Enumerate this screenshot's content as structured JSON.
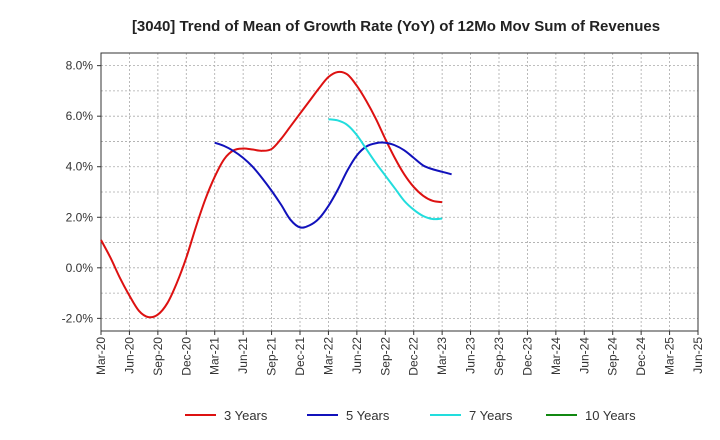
{
  "chart_data": {
    "type": "line",
    "title": "[3040]  Trend of Mean of Growth Rate (YoY) of 12Mo Mov Sum of Revenues",
    "xlabel": "",
    "ylabel": "",
    "ylim": [
      -2.5,
      8.5
    ],
    "yticks": [
      -2.0,
      0.0,
      2.0,
      4.0,
      6.0,
      8.0
    ],
    "ytick_labels": [
      "-2.0%",
      "0.0%",
      "2.0%",
      "4.0%",
      "6.0%",
      "8.0%"
    ],
    "x_tick_labels": [
      "Mar-20",
      "Jun-20",
      "Sep-20",
      "Dec-20",
      "Mar-21",
      "Jun-21",
      "Sep-21",
      "Dec-21",
      "Mar-22",
      "Jun-22",
      "Sep-22",
      "Dec-22",
      "Mar-23",
      "Jun-23",
      "Sep-23",
      "Dec-23",
      "Mar-24",
      "Jun-24",
      "Sep-24",
      "Dec-24",
      "Mar-25",
      "Jun-25"
    ],
    "grid": true,
    "legend_position": "bottom",
    "series": [
      {
        "name": "3 Years",
        "color": "#dd1111",
        "start_index": 0,
        "values": [
          1.1,
          0.4,
          -0.4,
          -1.1,
          -1.7,
          -1.95,
          -1.85,
          -1.4,
          -0.6,
          0.4,
          1.6,
          2.7,
          3.6,
          4.3,
          4.65,
          4.72,
          4.68,
          4.63,
          4.7,
          5.1,
          5.6,
          6.1,
          6.6,
          7.1,
          7.55,
          7.75,
          7.65,
          7.2,
          6.6,
          5.9,
          5.1,
          4.35,
          3.7,
          3.2,
          2.85,
          2.65,
          2.6
        ]
      },
      {
        "name": "5 Years",
        "color": "#1111bb",
        "start_index": 12,
        "values": [
          4.95,
          4.82,
          4.62,
          4.35,
          4.0,
          3.55,
          3.05,
          2.5,
          1.9,
          1.6,
          1.68,
          1.95,
          2.45,
          3.1,
          3.85,
          4.45,
          4.8,
          4.93,
          4.95,
          4.85,
          4.65,
          4.35,
          4.05,
          3.9,
          3.8,
          3.7
        ]
      },
      {
        "name": "7 Years",
        "color": "#22dddd",
        "start_index": 24,
        "values": [
          5.88,
          5.83,
          5.65,
          5.25,
          4.7,
          4.15,
          3.65,
          3.15,
          2.65,
          2.3,
          2.05,
          1.93,
          1.95
        ]
      },
      {
        "name": "10 Years",
        "color": "#118811",
        "start_index": 0,
        "values": []
      }
    ]
  }
}
